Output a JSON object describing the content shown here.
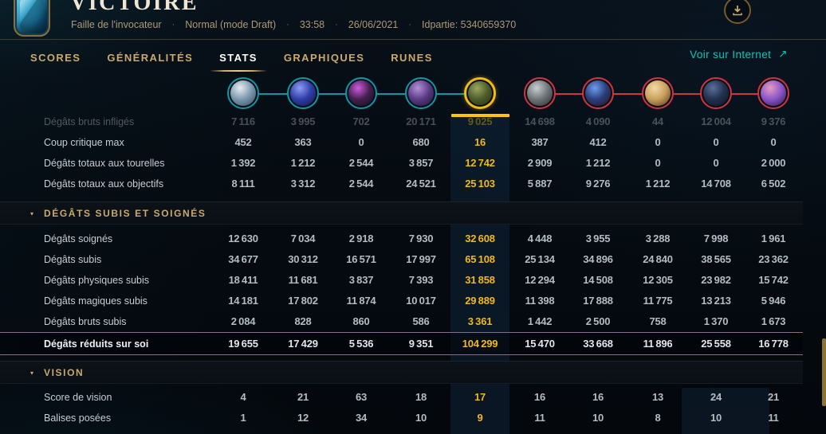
{
  "header": {
    "result": "VICTOIRE",
    "map": "Faille de l'invocateur",
    "mode": "Normal (mode Draft)",
    "duration": "33:58",
    "date": "26/06/2021",
    "game_id": "Idpartie: 5340659370",
    "separator": "·"
  },
  "tabs": [
    {
      "label": "SCORES",
      "active": false
    },
    {
      "label": "GÉNÉRALITÉS",
      "active": false
    },
    {
      "label": "STATS",
      "active": true
    },
    {
      "label": "GRAPHIQUES",
      "active": false
    },
    {
      "label": "RUNES",
      "active": false
    }
  ],
  "external_link": {
    "label": "Voir sur Internet",
    "arrow": "↗"
  },
  "portraits": {
    "selected_index": 4,
    "team_blue_ring": "#0d97a6",
    "team_red_ring": "#cf3440",
    "selected_ring": "#f2ba17",
    "underline_color": "#fdc50a",
    "champions": [
      {
        "id": "champion-1",
        "team": "blue",
        "colors": [
          "#e8eef2",
          "#7d99af",
          "#31465c"
        ]
      },
      {
        "id": "champion-2",
        "team": "blue",
        "colors": [
          "#8e9cf5",
          "#2f3ea8",
          "#0f1440"
        ]
      },
      {
        "id": "champion-3",
        "team": "blue",
        "colors": [
          "#d05ae0",
          "#43204e",
          "#140a18"
        ]
      },
      {
        "id": "champion-4",
        "team": "blue",
        "colors": [
          "#b292d8",
          "#5c3b85",
          "#1c1030"
        ]
      },
      {
        "id": "champion-5",
        "team": "blue",
        "colors": [
          "#9aa85e",
          "#4f5d2c",
          "#222c12"
        ]
      },
      {
        "id": "champion-6",
        "team": "red",
        "colors": [
          "#c9ced2",
          "#6e7478",
          "#26292c"
        ]
      },
      {
        "id": "champion-7",
        "team": "red",
        "colors": [
          "#6f9bf0",
          "#2a3f7a",
          "#2a0f1a"
        ]
      },
      {
        "id": "champion-8",
        "team": "red",
        "colors": [
          "#f2d9a8",
          "#caa05c",
          "#4a3418"
        ]
      },
      {
        "id": "champion-9",
        "team": "red",
        "colors": [
          "#5a6f9a",
          "#22304f",
          "#0c1322"
        ]
      },
      {
        "id": "champion-10",
        "team": "red",
        "colors": [
          "#e79bc0",
          "#8a56c9",
          "#2a1440"
        ]
      }
    ]
  },
  "stats_table": {
    "accent_color": "#f0b915",
    "selected_column": 4,
    "sections": [
      {
        "title": "",
        "rows": [
          {
            "label": "Dégâts bruts infligés",
            "values": [
              7116,
              3995,
              702,
              20171,
              9025,
              14698,
              4090,
              44,
              12004,
              9376
            ],
            "faded": true
          },
          {
            "label": "Coup critique max",
            "values": [
              452,
              363,
              0,
              680,
              16,
              387,
              412,
              0,
              0,
              0
            ]
          },
          {
            "label": "Dégâts totaux aux tourelles",
            "values": [
              1392,
              1212,
              2544,
              3857,
              12742,
              2909,
              1212,
              0,
              0,
              2000
            ]
          },
          {
            "label": "Dégâts totaux aux objectifs",
            "values": [
              8111,
              3312,
              2544,
              24521,
              25103,
              5887,
              9276,
              1212,
              14708,
              6502
            ]
          }
        ]
      },
      {
        "title": "DÉGÂTS SUBIS ET SOIGNÉS",
        "rows": [
          {
            "label": "Dégâts soignés",
            "values": [
              12630,
              7034,
              2918,
              7930,
              32608,
              4448,
              3955,
              3288,
              7998,
              1961
            ]
          },
          {
            "label": "Dégâts subis",
            "values": [
              34677,
              30312,
              16571,
              17997,
              65108,
              25134,
              34896,
              24840,
              38565,
              23362
            ]
          },
          {
            "label": "Dégâts physiques subis",
            "values": [
              18411,
              11681,
              3837,
              7393,
              31858,
              12294,
              14508,
              12305,
              23982,
              15742
            ]
          },
          {
            "label": "Dégâts magiques subis",
            "values": [
              14181,
              17802,
              11874,
              10017,
              29889,
              11398,
              17888,
              11775,
              13213,
              5946
            ]
          },
          {
            "label": "Dégâts bruts subis",
            "values": [
              2084,
              828,
              860,
              586,
              3361,
              1442,
              2500,
              758,
              1370,
              1673
            ]
          },
          {
            "label": "Dégâts réduits sur soi",
            "values": [
              19655,
              17429,
              5536,
              9351,
              104299,
              15470,
              33668,
              11896,
              25558,
              16778
            ],
            "highlighted": true
          }
        ]
      },
      {
        "title": "VISION",
        "rows": [
          {
            "label": "Score de vision",
            "values": [
              4,
              21,
              63,
              18,
              17,
              16,
              16,
              13,
              24,
              21
            ]
          },
          {
            "label": "Balises posées",
            "values": [
              1,
              12,
              34,
              10,
              9,
              11,
              10,
              8,
              10,
              11
            ]
          }
        ]
      }
    ]
  }
}
